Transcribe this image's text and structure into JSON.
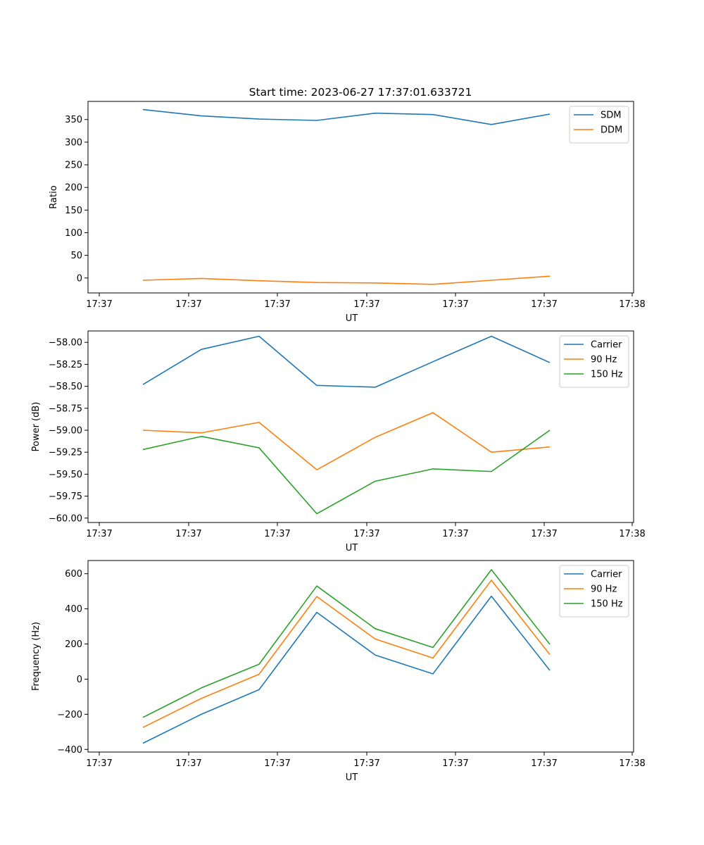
{
  "suptitle": "Start time: 2023-06-27 17:37:01.633721",
  "chart_data": [
    {
      "type": "line",
      "xlabel": "UT",
      "ylabel": "Ratio",
      "x_tick_labels": [
        "17:37",
        "17:37",
        "17:37",
        "17:37",
        "17:37",
        "17:37",
        "17:38"
      ],
      "ylim": [
        -33,
        390
      ],
      "y_ticks": [
        0,
        50,
        100,
        150,
        200,
        250,
        300,
        350
      ],
      "legend_position": "top-right",
      "series": [
        {
          "name": "SDM",
          "color": "#1f77b4",
          "values": [
            372,
            358,
            351,
            348,
            364,
            361,
            339,
            362
          ]
        },
        {
          "name": "DDM",
          "color": "#ff7f0e",
          "values": [
            -5,
            -1,
            -6,
            -10,
            -11,
            -14,
            -5,
            4
          ]
        }
      ]
    },
    {
      "type": "line",
      "xlabel": "UT",
      "ylabel": "Power (dB)",
      "x_tick_labels": [
        "17:37",
        "17:37",
        "17:37",
        "17:37",
        "17:37",
        "17:37",
        "17:38"
      ],
      "ylim": [
        -60.05,
        -57.87
      ],
      "y_ticks": [
        -60.0,
        -59.75,
        -59.5,
        -59.25,
        -59.0,
        -58.75,
        -58.5,
        -58.25,
        -58.0
      ],
      "y_tick_labels": [
        "−60.00",
        "−59.75",
        "−59.50",
        "−59.25",
        "−59.00",
        "−58.75",
        "−58.50",
        "−58.25",
        "−58.00"
      ],
      "legend_position": "top-right",
      "series": [
        {
          "name": "Carrier",
          "color": "#1f77b4",
          "values": [
            -58.48,
            -58.08,
            -57.93,
            -58.49,
            -58.51,
            -58.22,
            -57.93,
            -58.23
          ]
        },
        {
          "name": "90 Hz",
          "color": "#ff7f0e",
          "values": [
            -59.0,
            -59.03,
            -58.91,
            -59.45,
            -59.08,
            -58.8,
            -59.25,
            -59.19
          ]
        },
        {
          "name": "150 Hz",
          "color": "#2ca02c",
          "values": [
            -59.22,
            -59.07,
            -59.2,
            -59.95,
            -59.58,
            -59.44,
            -59.47,
            -59.0
          ]
        }
      ]
    },
    {
      "type": "line",
      "xlabel": "UT",
      "ylabel": "Frequency (Hz)",
      "x_tick_labels": [
        "17:37",
        "17:37",
        "17:37",
        "17:37",
        "17:37",
        "17:37",
        "17:38"
      ],
      "ylim": [
        -415,
        675
      ],
      "y_ticks": [
        -400,
        -200,
        0,
        200,
        400,
        600
      ],
      "y_tick_labels": [
        "−400",
        "−200",
        "0",
        "200",
        "400",
        "600"
      ],
      "legend_position": "top-right",
      "series": [
        {
          "name": "Carrier",
          "color": "#1f77b4",
          "values": [
            -365,
            -200,
            -60,
            380,
            137,
            30,
            472,
            50
          ]
        },
        {
          "name": "90 Hz",
          "color": "#ff7f0e",
          "values": [
            -275,
            -110,
            28,
            470,
            228,
            120,
            563,
            140
          ]
        },
        {
          "name": "150 Hz",
          "color": "#2ca02c",
          "values": [
            -218,
            -50,
            85,
            530,
            287,
            180,
            623,
            198
          ]
        }
      ]
    }
  ]
}
